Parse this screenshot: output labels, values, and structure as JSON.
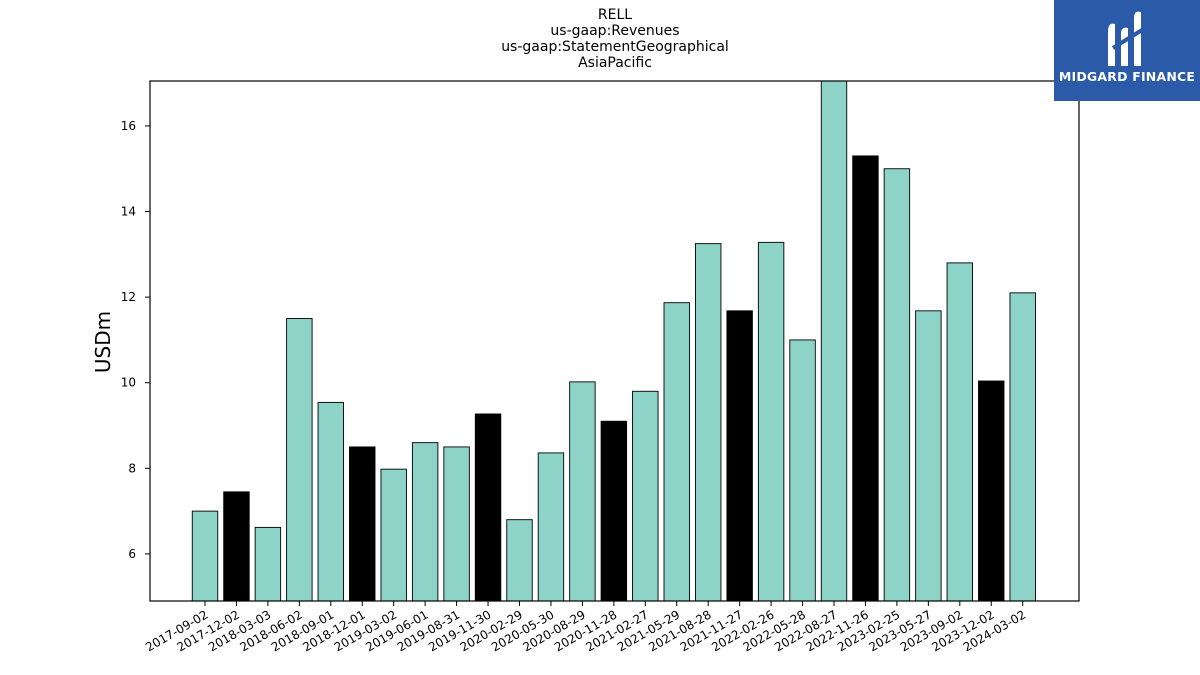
{
  "title_lines": [
    "RELL",
    "us-gaap:Revenues",
    "us-gaap:StatementGeographical",
    "AsiaPacific"
  ],
  "logo": {
    "text": "MIDGARD FINANCE",
    "background": "#2a5aa8"
  },
  "colors": {
    "teal": "#8dd3c7",
    "black": "#000000"
  },
  "chart_data": {
    "type": "bar",
    "title": "RELL\nus-gaap:Revenues\nus-gaap:StatementGeographical\nAsiaPacific",
    "xlabel": "",
    "ylabel": "USDm",
    "ylim": [
      4.9,
      17.05
    ],
    "yticks": [
      6,
      8,
      10,
      12,
      14,
      16
    ],
    "grid": false,
    "categories": [
      "2017-09-02",
      "2017-12-02",
      "2018-03-03",
      "2018-06-02",
      "2018-09-01",
      "2018-12-01",
      "2019-03-02",
      "2019-06-01",
      "2019-08-31",
      "2019-11-30",
      "2020-02-29",
      "2020-05-30",
      "2020-08-29",
      "2020-11-28",
      "2021-02-27",
      "2021-05-29",
      "2021-08-28",
      "2021-11-27",
      "2022-02-26",
      "2022-05-28",
      "2022-08-27",
      "2022-11-26",
      "2023-02-25",
      "2023-05-27",
      "2023-09-02",
      "2023-12-02",
      "2024-03-02"
    ],
    "values": [
      7.0,
      7.45,
      6.62,
      11.5,
      9.54,
      8.5,
      7.98,
      8.6,
      8.5,
      9.27,
      6.8,
      8.36,
      10.02,
      9.1,
      9.8,
      11.87,
      13.25,
      11.68,
      13.28,
      11.0,
      17.2,
      15.3,
      15.0,
      11.68,
      12.8,
      10.04,
      12.1
    ],
    "bar_colors": [
      "teal",
      "black",
      "teal",
      "teal",
      "teal",
      "black",
      "teal",
      "teal",
      "teal",
      "black",
      "teal",
      "teal",
      "teal",
      "black",
      "teal",
      "teal",
      "teal",
      "black",
      "teal",
      "teal",
      "teal",
      "black",
      "teal",
      "teal",
      "teal",
      "black",
      "teal"
    ]
  }
}
